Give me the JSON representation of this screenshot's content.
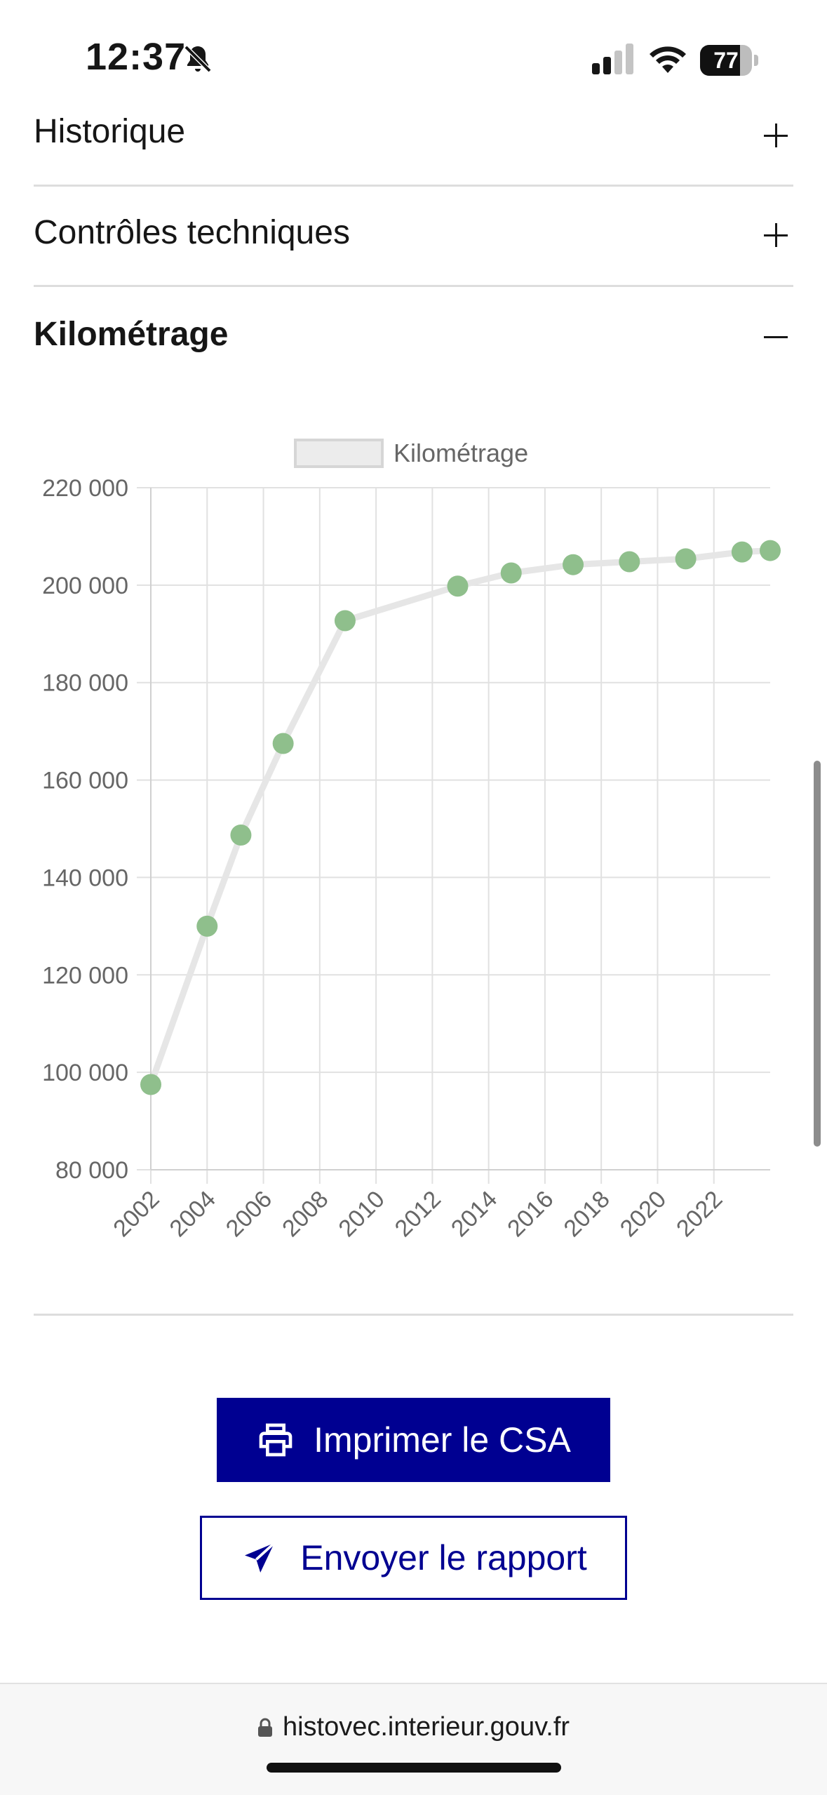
{
  "status_bar": {
    "time": "12:37",
    "battery": "77",
    "battery_level": 0.77
  },
  "accordions": [
    {
      "label": "Historique",
      "state": "collapsed"
    },
    {
      "label": "Contrôles techniques",
      "state": "collapsed"
    },
    {
      "label": "Kilométrage",
      "state": "expanded"
    }
  ],
  "chart_data": {
    "type": "line",
    "legend": [
      "Kilométrage"
    ],
    "legend_position": "top",
    "series": [
      {
        "name": "Kilométrage",
        "line_color": "#e6e6e6",
        "point_color": "#8fbf8c",
        "points": [
          {
            "x": 2002.0,
            "y": 97500
          },
          {
            "x": 2004.0,
            "y": 130000
          },
          {
            "x": 2005.2,
            "y": 148700
          },
          {
            "x": 2006.7,
            "y": 167500
          },
          {
            "x": 2008.9,
            "y": 192700
          },
          {
            "x": 2012.9,
            "y": 199800
          },
          {
            "x": 2014.8,
            "y": 202500
          },
          {
            "x": 2017.0,
            "y": 204200
          },
          {
            "x": 2019.0,
            "y": 204800
          },
          {
            "x": 2021.0,
            "y": 205400
          },
          {
            "x": 2023.0,
            "y": 206800
          },
          {
            "x": 2024.0,
            "y": 207100
          }
        ]
      }
    ],
    "x_ticks": [
      "2002",
      "2004",
      "2006",
      "2008",
      "2010",
      "2012",
      "2014",
      "2016",
      "2018",
      "2020",
      "2022"
    ],
    "y_ticks": [
      "80 000",
      "100 000",
      "120 000",
      "140 000",
      "160 000",
      "180 000",
      "200 000",
      "220 000"
    ],
    "xlim": [
      2002,
      2024
    ],
    "ylim": [
      80000,
      220000
    ],
    "grid": true
  },
  "buttons": {
    "print_label": "Imprimer le CSA",
    "send_label": "Envoyer le rapport"
  },
  "browser": {
    "url": "histovec.interieur.gouv.fr"
  },
  "colors": {
    "primary": "#000091",
    "point": "#8fbf8c"
  }
}
